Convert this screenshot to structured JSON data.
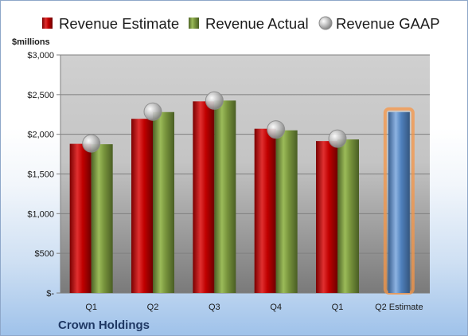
{
  "chart_data": {
    "type": "bar",
    "title": "",
    "unit_label": "$millions",
    "company": "Crown Holdings",
    "categories": [
      "Q1",
      "Q2",
      "Q3",
      "Q4",
      "Q1",
      "Q2 Estimate"
    ],
    "series": [
      {
        "name": "Revenue Estimate",
        "kind": "bar",
        "color": "#c00000",
        "values": [
          1880,
          2195,
          2415,
          2070,
          1915,
          null
        ]
      },
      {
        "name": "Revenue Actual",
        "kind": "bar",
        "color": "#77933c",
        "values": [
          1875,
          2280,
          2425,
          2050,
          1935,
          null
        ]
      },
      {
        "name": "Revenue GAAP",
        "kind": "point",
        "color": "#a6a6a6",
        "values": [
          1885,
          2285,
          2425,
          2060,
          1945,
          null
        ]
      }
    ],
    "estimate_bar": {
      "category": "Q2 Estimate",
      "value": 2280,
      "color": "#4f81bd",
      "glow": "#f79646"
    },
    "y_ticks": [
      {
        "value": 0,
        "label": "$-"
      },
      {
        "value": 500,
        "label": "$500"
      },
      {
        "value": 1000,
        "label": "$1,000"
      },
      {
        "value": 1500,
        "label": "$1,500"
      },
      {
        "value": 2000,
        "label": "$2,000"
      },
      {
        "value": 2500,
        "label": "$2,500"
      },
      {
        "value": 3000,
        "label": "$3,000"
      }
    ],
    "ylim": [
      0,
      3000
    ],
    "grid": true,
    "legend_position": "top"
  }
}
